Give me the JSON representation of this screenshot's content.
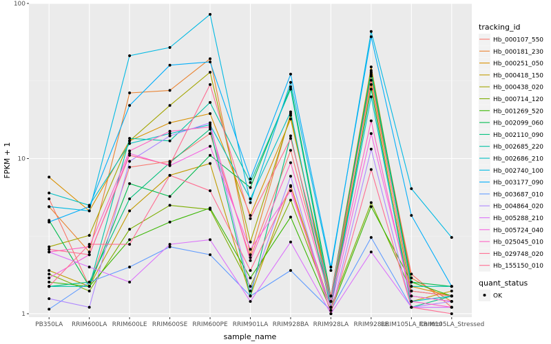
{
  "chart_data": {
    "type": "line",
    "log_scale_y": true,
    "xlabel": "sample_name",
    "ylabel": "FPKM + 1",
    "ylim": [
      0.95,
      100
    ],
    "yticks": [
      1,
      10,
      100
    ],
    "ytick_labels": [
      "1",
      "10",
      "100"
    ],
    "grid": true,
    "legend_placement": "right",
    "categories": [
      "PB350LA",
      "RRIM600LA",
      "RRIM600LE",
      "RRIM600SE",
      "RRIM600PE",
      "RRIM901LA",
      "RRIM928BA",
      "RRIM928LA",
      "RRIM928LE",
      "RRIM105LA_Control",
      "RRIM105LA_Stressed"
    ],
    "category_labels": [
      "PB350LA",
      "RRIM600LA",
      "RRIM600LE",
      "RRIM600SE",
      "RRIM600PE",
      "RRIM901LA",
      "RRIM928BA",
      "RRIM928LA",
      "RRIM928LE",
      "RRIM105LA_Control",
      "RRIM105LA_Stressed"
    ],
    "legend_title": "tracking_id",
    "series": [
      {
        "name": "Hb_000107_550",
        "color": "#F8766D",
        "values": [
          5.5,
          1.5,
          8.8,
          9.6,
          14.5,
          2.3,
          11.3,
          1.2,
          34.0,
          1.8,
          1.1
        ]
      },
      {
        "name": "Hb_000181_230",
        "color": "#EA8331",
        "values": [
          4.9,
          2.5,
          26.5,
          27.5,
          44.0,
          2.4,
          19.5,
          1.1,
          36.0,
          1.7,
          1.2
        ]
      },
      {
        "name": "Hb_000251_050",
        "color": "#D89000",
        "values": [
          7.6,
          4.6,
          13.0,
          17.0,
          19.5,
          4.3,
          18.0,
          1.3,
          39.0,
          1.5,
          1.3
        ]
      },
      {
        "name": "Hb_000418_150",
        "color": "#C09B00",
        "values": [
          1.9,
          1.5,
          4.6,
          7.8,
          9.3,
          1.3,
          6.7,
          1.1,
          30.0,
          1.2,
          1.4
        ]
      },
      {
        "name": "Hb_000438_020",
        "color": "#A3A500",
        "values": [
          2.7,
          3.2,
          13.0,
          22.0,
          36.0,
          2.9,
          19.0,
          1.2,
          35.0,
          1.3,
          1.2
        ]
      },
      {
        "name": "Hb_000714_120",
        "color": "#7CAE00",
        "values": [
          1.8,
          1.4,
          3.5,
          5.0,
          4.7,
          1.5,
          5.4,
          1.1,
          5.2,
          1.4,
          1.3
        ]
      },
      {
        "name": "Hb_001269_520",
        "color": "#39B600",
        "values": [
          1.6,
          1.5,
          3.0,
          3.9,
          4.8,
          1.7,
          4.2,
          1.05,
          4.9,
          1.6,
          1.3
        ]
      },
      {
        "name": "Hb_002099_060",
        "color": "#00BB4E",
        "values": [
          4.0,
          1.5,
          6.9,
          5.7,
          10.5,
          6.5,
          29.0,
          1.3,
          37.0,
          1.6,
          1.5
        ]
      },
      {
        "name": "Hb_002110_090",
        "color": "#00BF7D",
        "values": [
          1.5,
          1.6,
          5.5,
          9.4,
          15.5,
          1.3,
          14.0,
          1.1,
          28.0,
          1.1,
          1.3
        ]
      },
      {
        "name": "Hb_002685_220",
        "color": "#00C1A3",
        "values": [
          1.5,
          1.5,
          13.5,
          13.0,
          23.0,
          7.0,
          28.0,
          1.2,
          36.0,
          1.5,
          1.5
        ]
      },
      {
        "name": "Hb_002686_210",
        "color": "#00BFC4",
        "values": [
          6.0,
          5.0,
          12.5,
          14.5,
          16.5,
          5.5,
          20.0,
          1.1,
          25.0,
          1.2,
          1.3
        ]
      },
      {
        "name": "Hb_002740_100",
        "color": "#00B9E3",
        "values": [
          4.9,
          4.6,
          46.0,
          52.0,
          85.0,
          5.2,
          31.0,
          1.9,
          66.0,
          6.4,
          3.1
        ]
      },
      {
        "name": "Hb_003177_090",
        "color": "#00ADFA",
        "values": [
          3.9,
          4.9,
          22.0,
          40.0,
          42.0,
          7.4,
          35.0,
          2.0,
          61.0,
          4.3,
          1.5
        ]
      },
      {
        "name": "Hb_003687_010",
        "color": "#619CFF",
        "values": [
          1.07,
          1.6,
          2.0,
          2.7,
          2.4,
          1.3,
          1.9,
          1.05,
          3.1,
          1.1,
          1.1
        ]
      },
      {
        "name": "Hb_004864_020",
        "color": "#AE87FF",
        "values": [
          1.25,
          1.1,
          9.6,
          14.0,
          17.0,
          1.4,
          7.7,
          1.0,
          11.5,
          1.1,
          1.2
        ]
      },
      {
        "name": "Hb_005288_210",
        "color": "#DB72FB",
        "values": [
          2.5,
          2.0,
          1.6,
          2.8,
          3.0,
          1.2,
          2.9,
          1.0,
          2.5,
          1.1,
          1.1
        ]
      },
      {
        "name": "Hb_005724_040",
        "color": "#F564E3",
        "values": [
          1.7,
          2.4,
          10.8,
          9.0,
          12.0,
          2.6,
          6.2,
          1.1,
          14.5,
          1.3,
          1.2
        ]
      },
      {
        "name": "Hb_025045_010",
        "color": "#FF61C3",
        "values": [
          2.5,
          2.7,
          11.2,
          15.0,
          16.0,
          2.2,
          9.4,
          1.2,
          17.5,
          1.2,
          1.1
        ]
      },
      {
        "name": "Hb_029748_020",
        "color": "#FF6C91",
        "values": [
          1.5,
          2.8,
          2.8,
          7.8,
          6.2,
          1.9,
          6.6,
          1.0,
          8.5,
          1.1,
          1.0
        ]
      },
      {
        "name": "Hb_155150_010",
        "color": "#FF6C91",
        "values": [
          2.6,
          2.4,
          10.5,
          9.1,
          30.0,
          4.1,
          13.5,
          1.3,
          32.0,
          1.4,
          1.3
        ]
      }
    ],
    "shape_legend": {
      "title": "quant_status",
      "items": [
        "OK"
      ]
    }
  },
  "colors": {
    "panel_bg": "#EBEBEB",
    "grid_major": "#FFFFFF",
    "grid_minor": "#F5F5F5",
    "point": "#000000"
  }
}
